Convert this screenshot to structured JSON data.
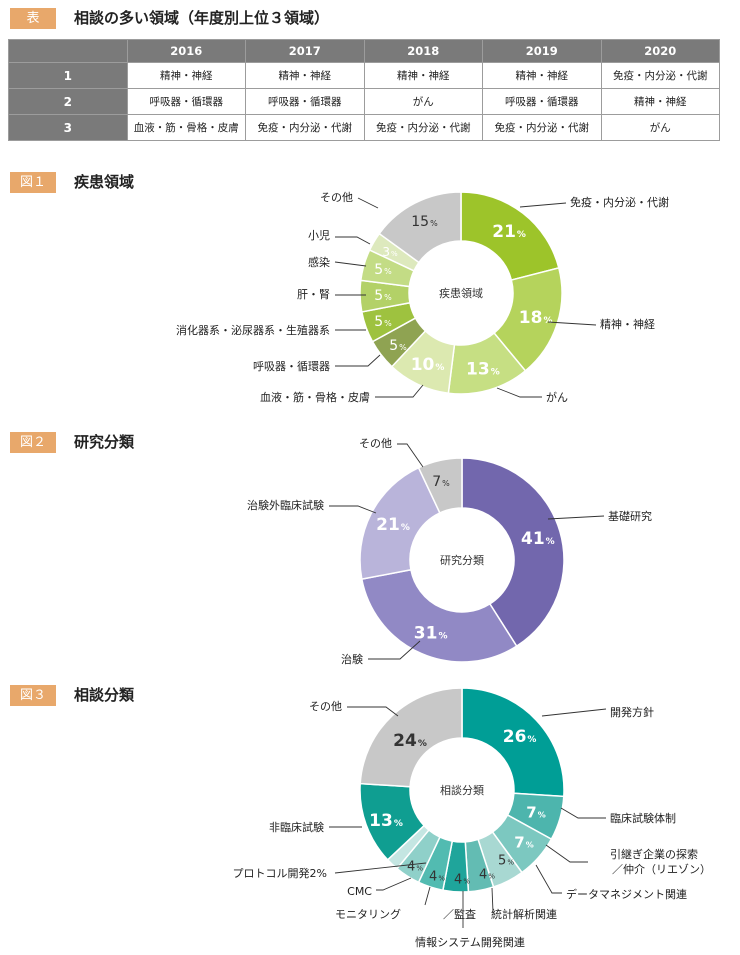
{
  "table": {
    "tag": "表",
    "title": "相談の多い領域（年度別上位３領域）",
    "years": [
      "2016",
      "2017",
      "2018",
      "2019",
      "2020"
    ],
    "rows": [
      {
        "rank": "1",
        "cells": [
          "精神・神経",
          "精神・神経",
          "精神・神経",
          "精神・神経",
          "免疫・内分泌・代謝"
        ]
      },
      {
        "rank": "2",
        "cells": [
          "呼吸器・循環器",
          "呼吸器・循環器",
          "がん",
          "呼吸器・循環器",
          "精神・神経"
        ]
      },
      {
        "rank": "3",
        "cells": [
          "血液・筋・骨格・皮膚",
          "免疫・内分泌・代謝",
          "免疫・内分泌・代謝",
          "免疫・内分泌・代謝",
          "がん"
        ]
      }
    ]
  },
  "chart_data": [
    {
      "type": "pie",
      "tag": "図１",
      "title": "疾患領域",
      "center_label": "疾患領域",
      "labels": [
        "免疫・内分泌・代謝",
        "精神・神経",
        "がん",
        "血液・筋・骨格・皮膚",
        "呼吸器・循環器",
        "消化器系・泌尿器系・生殖器系",
        "肝・腎",
        "感染",
        "小児",
        "その他"
      ],
      "values": [
        21,
        18,
        13,
        10,
        5,
        5,
        5,
        5,
        3,
        15
      ],
      "value_labels": [
        "21",
        "18",
        "13",
        "10",
        "5",
        "5",
        "5",
        "5",
        "3",
        "15"
      ],
      "colors": [
        "#9dc42a",
        "#b5d35c",
        "#c6df83",
        "#dce9b0",
        "#8fa352",
        "#9ec23f",
        "#b3d167",
        "#c3dc85",
        "#dde9bd",
        "#c8c8c8"
      ]
    },
    {
      "type": "pie",
      "tag": "図２",
      "title": "研究分類",
      "center_label": "研究分類",
      "labels": [
        "基礎研究",
        "治験",
        "治験外臨床試験",
        "その他"
      ],
      "values": [
        41,
        31,
        21,
        7
      ],
      "value_labels": [
        "41",
        "31",
        "21",
        "7"
      ],
      "colors": [
        "#7267ad",
        "#9189c5",
        "#b9b4da",
        "#c8c8c8"
      ]
    },
    {
      "type": "pie",
      "tag": "図３",
      "title": "相談分類",
      "center_label": "相談分類",
      "labels": [
        "開発方針",
        "臨床試験体制",
        "引継ぎ企業の探索／仲介（リエゾン）",
        "データマネジメント関連",
        "統計解析関連",
        "情報システム開発関連",
        "モニタリング／監査",
        "CMC",
        "プロトコル開発",
        "非臨床試験",
        "その他"
      ],
      "values": [
        26,
        7,
        7,
        5,
        4,
        4,
        4,
        4,
        2,
        13,
        24
      ],
      "value_labels": [
        "26",
        "7",
        "7",
        "5",
        "4",
        "4",
        "4",
        "4",
        "",
        "13",
        "24"
      ],
      "colors": [
        "#009e96",
        "#4db5ad",
        "#7cc8c0",
        "#a8d8d2",
        "#63bcb3",
        "#1fa59b",
        "#52bbb1",
        "#8fd0c9",
        "#c4e6e2",
        "#0f9e91",
        "#c8c8c8"
      ]
    }
  ],
  "annotations": {
    "chart3_protocol": "プロトコル開発2%",
    "chart3_liaison_line1": "引継ぎ企業の探索",
    "chart3_liaison_line2": "／仲介（リエゾン）",
    "chart3_monitoring_a": "モニタリング",
    "chart3_monitoring_b": "／監査"
  }
}
